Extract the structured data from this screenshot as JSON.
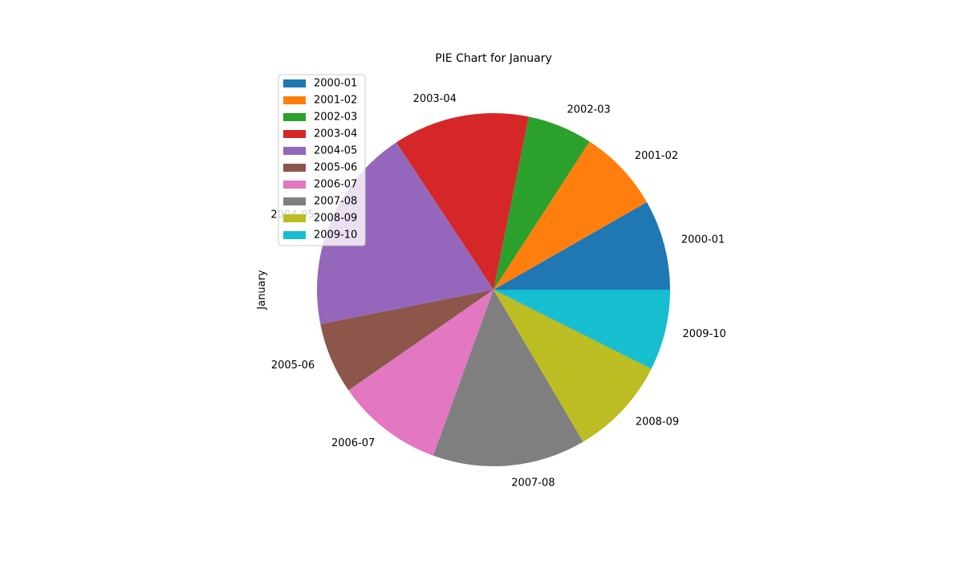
{
  "chart_data": {
    "type": "pie",
    "title": "PIE Chart for January",
    "ylabel": "January",
    "labels": [
      "2000-01",
      "2001-02",
      "2002-03",
      "2003-04",
      "2004-05",
      "2005-06",
      "2006-07",
      "2007-08",
      "2008-09",
      "2009-10"
    ],
    "values": [
      8.6,
      7.9,
      6.2,
      13.0,
      19.6,
      6.8,
      10.2,
      14.6,
      9.5,
      7.7
    ],
    "colors": [
      "#1f77b4",
      "#ff7f0e",
      "#2ca02c",
      "#d62728",
      "#9467bd",
      "#8c564b",
      "#e377c2",
      "#7f7f7f",
      "#bcbd22",
      "#17becf"
    ],
    "start_angle_deg": 0,
    "direction": "counterclockwise",
    "legend": {
      "placement": "upper-left",
      "entries": [
        "2000-01",
        "2001-02",
        "2002-03",
        "2003-04",
        "2004-05",
        "2005-06",
        "2006-07",
        "2007-08",
        "2008-09",
        "2009-10"
      ]
    }
  }
}
